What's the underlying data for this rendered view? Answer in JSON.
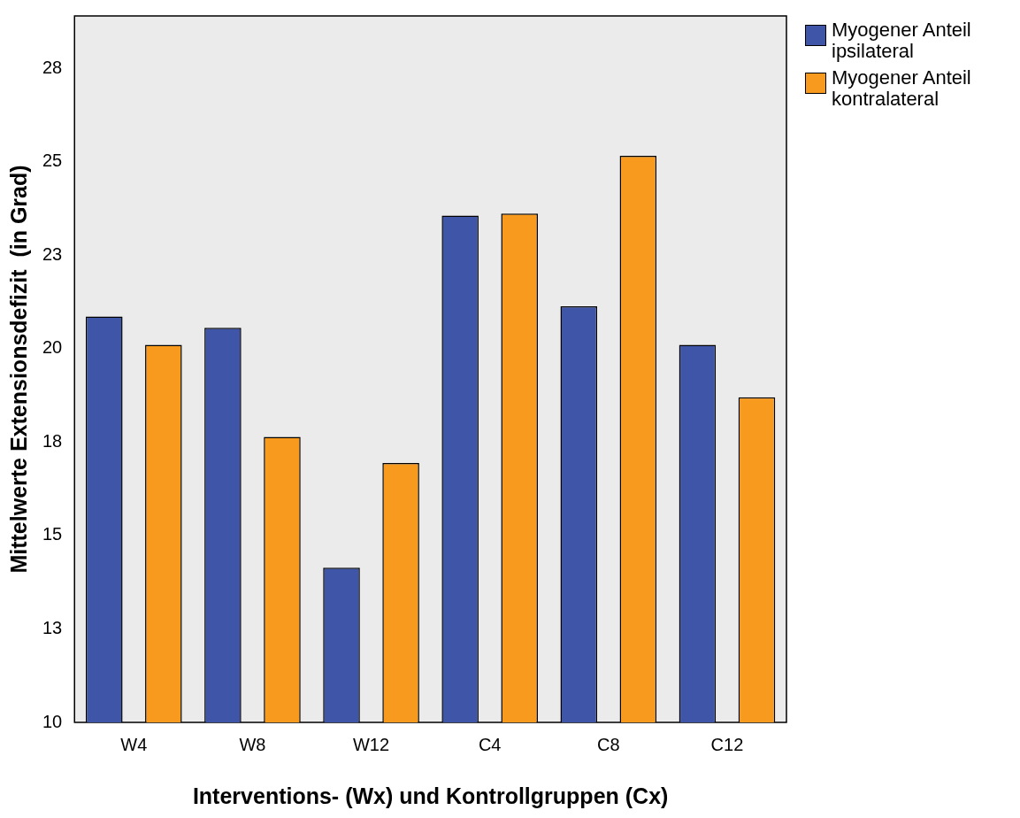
{
  "chart_data": {
    "type": "bar",
    "xlabel": "Interventions- (Wx) und Kontrollgruppen (Cx)",
    "ylabel": "Mittelwerte Extensionsdefizit  (in Grad)",
    "categories": [
      "W4",
      "W8",
      "W12",
      "C4",
      "C8",
      "C12"
    ],
    "series": [
      {
        "name": "Myogener Anteil ipsilateral",
        "color": "#3f56a8",
        "values": [
          20.86,
          20.56,
          14.14,
          23.56,
          21.13,
          20.1
        ]
      },
      {
        "name": "Myogener Anteil kontralateral",
        "color": "#f79a1e",
        "values": [
          20.1,
          17.64,
          16.94,
          23.61,
          25.16,
          18.7
        ]
      }
    ],
    "ylim": [
      10,
      28.9
    ],
    "yticks": [
      10,
      {
        "value": 12.5,
        "label": "13"
      },
      15,
      {
        "value": 17.5,
        "label": "18"
      },
      20,
      {
        "value": 22.5,
        "label": "23"
      },
      25,
      {
        "value": 27.5,
        "label": "28"
      }
    ],
    "grid": false,
    "legend": "top right"
  }
}
